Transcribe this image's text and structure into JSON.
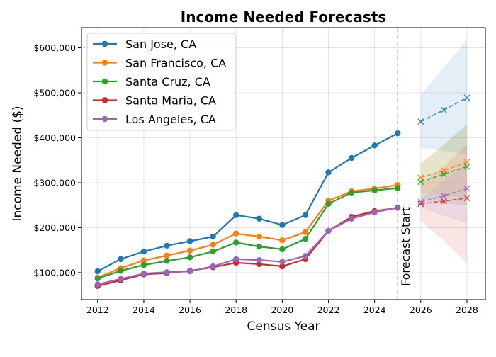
{
  "chart_data": {
    "type": "line",
    "title": "Income Needed Forecasts",
    "xlabel": "Census Year",
    "ylabel": "Income Needed ($)",
    "xlim": [
      2011.3,
      2028.8
    ],
    "ylim": [
      40000,
      645000
    ],
    "x_ticks": [
      2012,
      2014,
      2016,
      2018,
      2020,
      2022,
      2024,
      2026,
      2028
    ],
    "y_ticks": [
      100000,
      200000,
      300000,
      400000,
      500000,
      600000
    ],
    "y_tick_labels": [
      "$100,000",
      "$200,000",
      "$300,000",
      "$400,000",
      "$500,000",
      "$600,000"
    ],
    "grid": true,
    "legend_position": "top-left",
    "forecast_line": {
      "x": 2025,
      "label": "Forecast Start",
      "color": "#b0b0b0"
    },
    "x": [
      2012,
      2013,
      2014,
      2015,
      2016,
      2017,
      2018,
      2019,
      2020,
      2021,
      2022,
      2023,
      2024,
      2025
    ],
    "forecast_x": [
      2026,
      2027,
      2028
    ],
    "series": [
      {
        "name": "San Jose, CA",
        "color": "#1f77b4",
        "values": [
          103000,
          130000,
          147000,
          160000,
          170000,
          180000,
          228000,
          220000,
          206000,
          228000,
          323000,
          355000,
          383000,
          410000
        ],
        "forecast": [
          436000,
          462000,
          489000
        ],
        "band_lower": [
          377000,
          371000,
          364000
        ],
        "band_upper": [
          495000,
          557000,
          617000
        ]
      },
      {
        "name": "San Francisco, CA",
        "color": "#ff7f0e",
        "values": [
          89000,
          110000,
          127000,
          138000,
          149000,
          162000,
          187000,
          180000,
          172000,
          190000,
          260000,
          281000,
          287000,
          295000
        ],
        "forecast": [
          311000,
          327000,
          346000
        ],
        "band_lower": [
          278000,
          273000,
          267000
        ],
        "band_upper": [
          345000,
          385000,
          428000
        ]
      },
      {
        "name": "Santa Cruz, CA",
        "color": "#2ca02c",
        "values": [
          87000,
          104000,
          117000,
          126000,
          134000,
          147000,
          167000,
          158000,
          152000,
          175000,
          253000,
          278000,
          283000,
          288000
        ],
        "forecast": [
          302000,
          319000,
          336000
        ],
        "band_lower": [
          262000,
          255000,
          249000
        ],
        "band_upper": [
          341000,
          384000,
          432000
        ]
      },
      {
        "name": "Santa Maria, CA",
        "color": "#d62728",
        "values": [
          70000,
          83000,
          96000,
          99000,
          104000,
          112000,
          122000,
          119000,
          114000,
          130000,
          193000,
          224000,
          237000,
          244000
        ],
        "forecast": [
          253000,
          259000,
          266000
        ],
        "band_lower": [
          214000,
          171000,
          120000
        ],
        "band_upper": [
          296000,
          336000,
          386000
        ]
      },
      {
        "name": "Los Angeles, CA",
        "color": "#9467bd",
        "values": [
          74000,
          86000,
          98000,
          101000,
          103000,
          114000,
          130000,
          128000,
          124000,
          137000,
          193000,
          220000,
          234000,
          245000
        ],
        "forecast": [
          257000,
          271000,
          287000
        ],
        "band_lower": [
          245000,
          226000,
          210000
        ],
        "band_upper": [
          265000,
          305000,
          343000
        ]
      }
    ]
  }
}
